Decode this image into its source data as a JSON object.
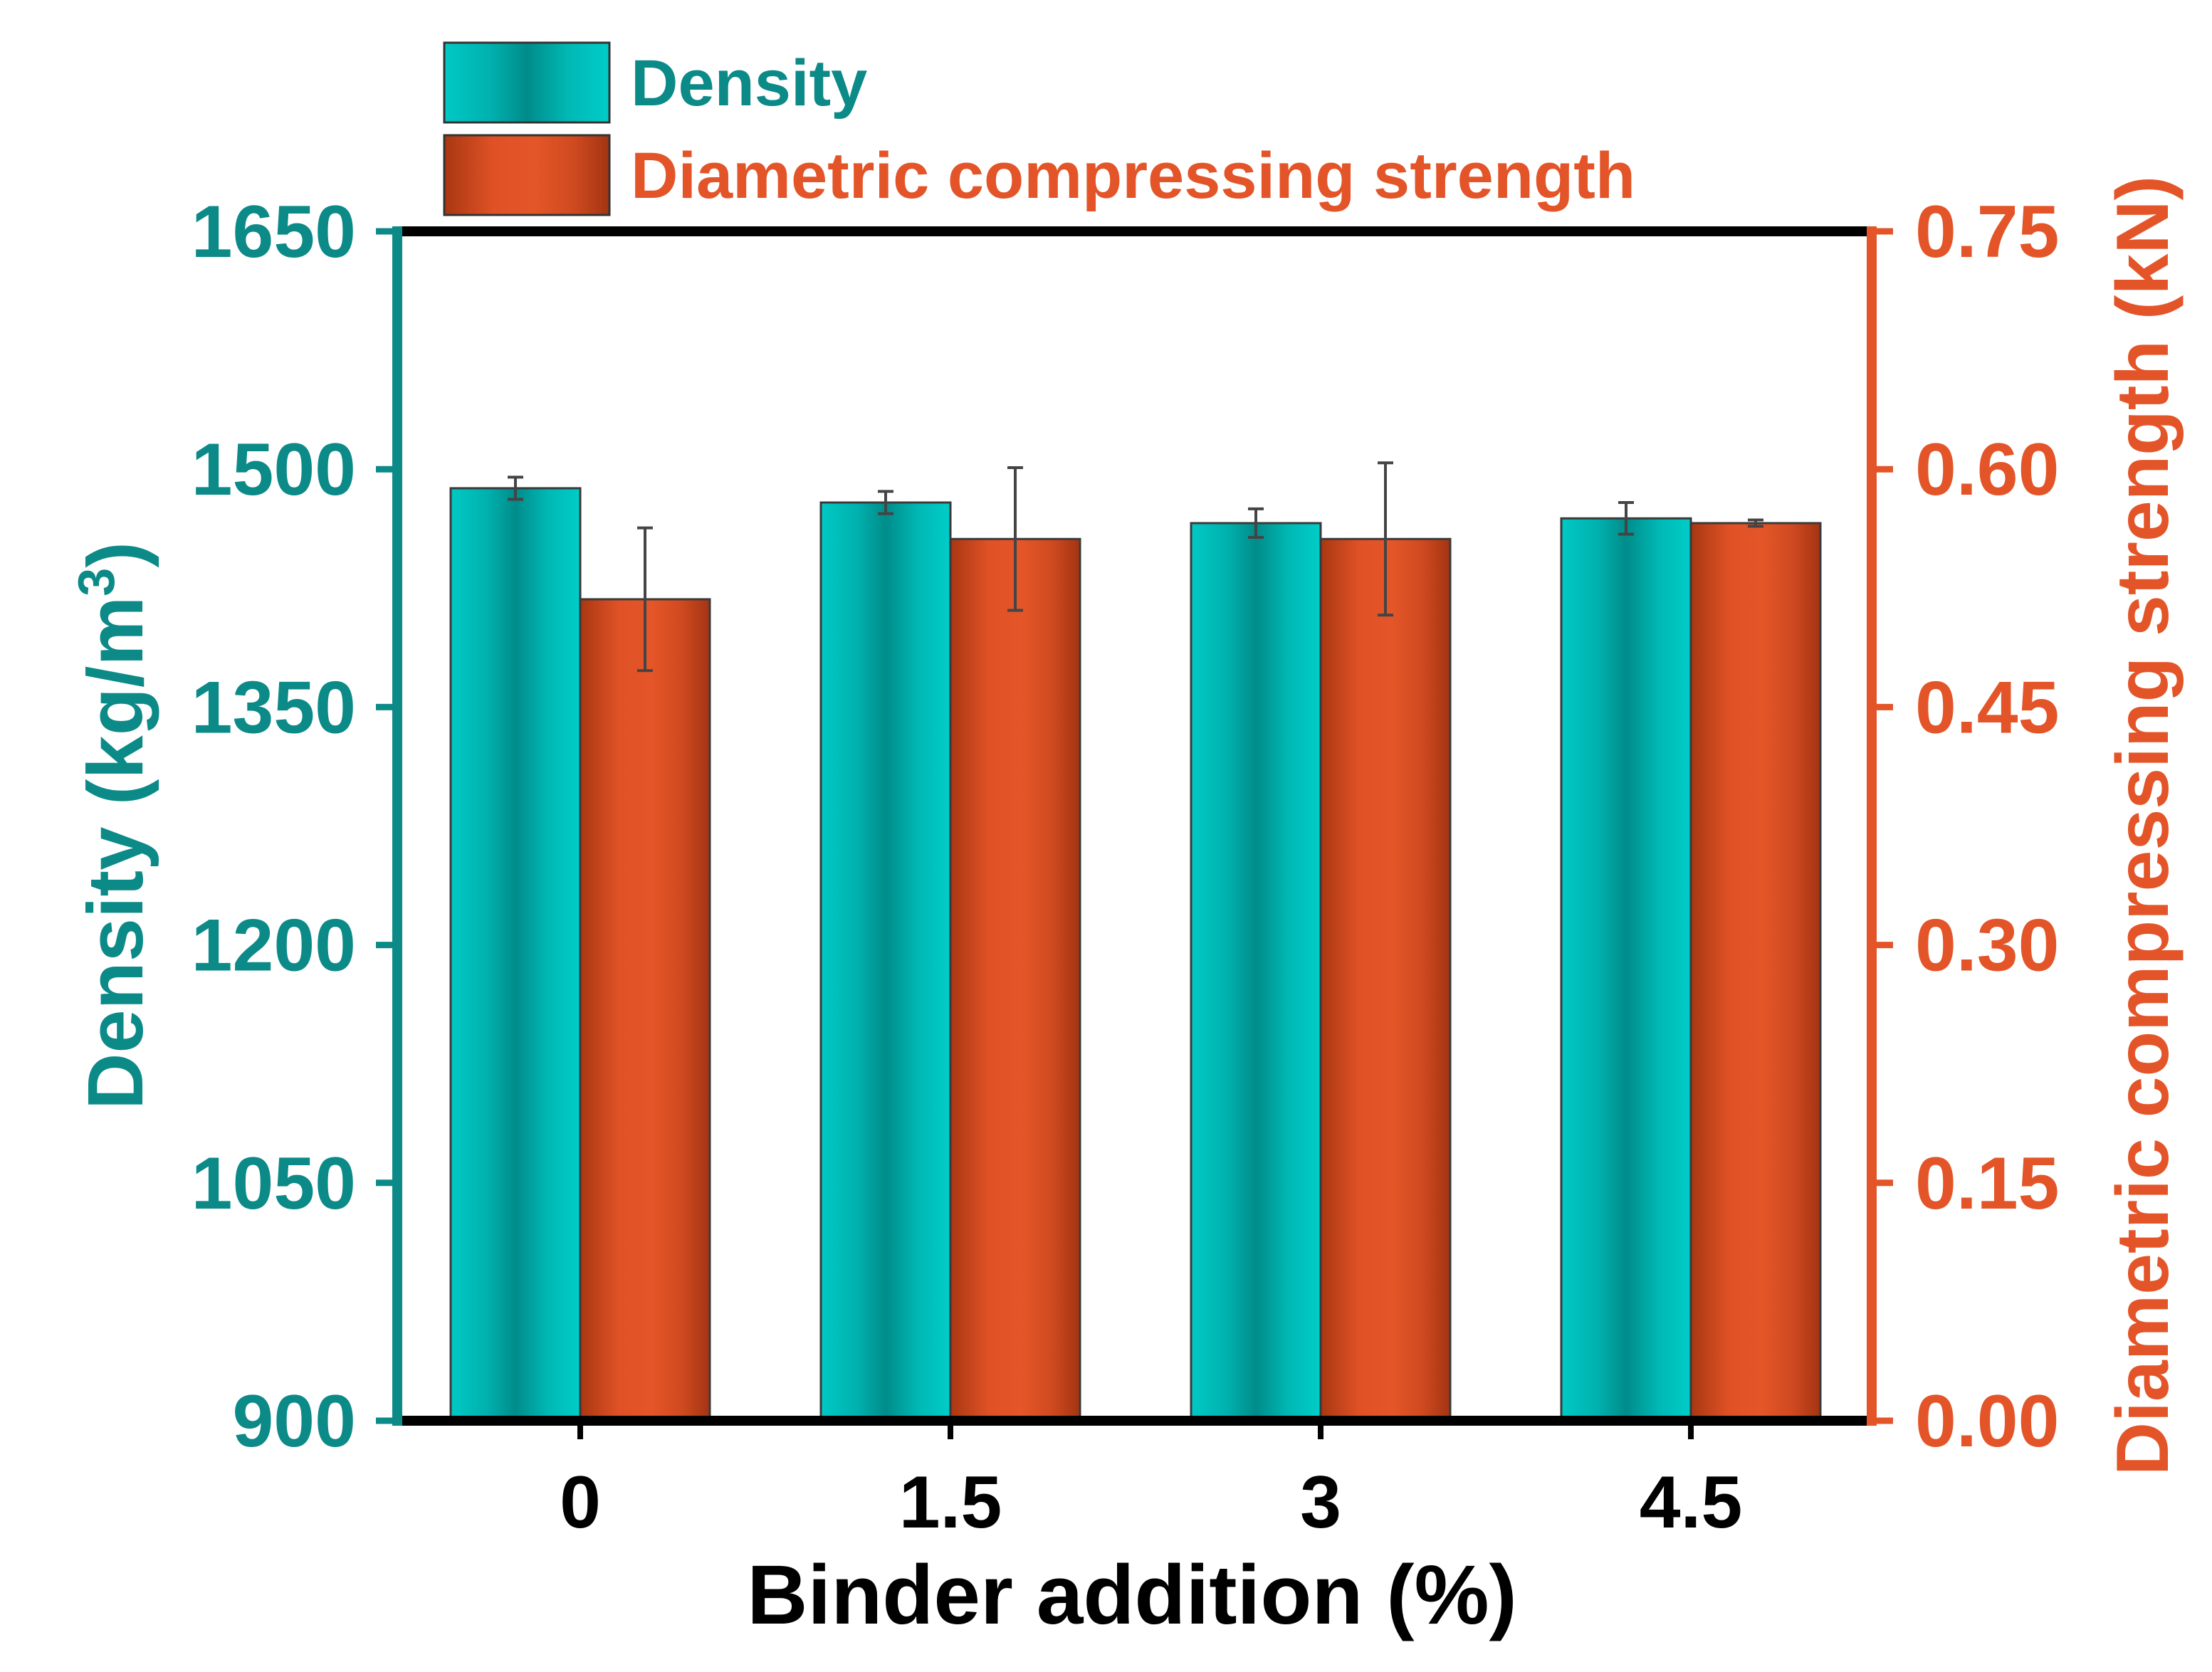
{
  "chart_data": {
    "type": "bar",
    "xlabel": "Binder addition (%)",
    "categories": [
      "0",
      "1.5",
      "3",
      "4.5"
    ],
    "series": [
      {
        "name": "Density",
        "axis": "left",
        "color": "#00c8c4",
        "values": [
          1488,
          1479,
          1466,
          1469
        ],
        "errors": [
          7,
          7,
          9,
          10
        ]
      },
      {
        "name": "Diametric compressing strength",
        "axis": "right",
        "color": "#e35528",
        "values": [
          0.518,
          0.556,
          0.556,
          0.566
        ],
        "errors": [
          0.045,
          0.045,
          0.048,
          0.002
        ]
      }
    ],
    "left_axis": {
      "label_main": "Density (kg/m",
      "label_sup": "3",
      "label_end": ")",
      "ylim": [
        900,
        1650
      ],
      "ticks": [
        "900",
        "1050",
        "1200",
        "1350",
        "1500",
        "1650"
      ],
      "color": "#0b8a88"
    },
    "right_axis": {
      "label": "Diametric compressing strength (kN)",
      "ylim": [
        0,
        0.75
      ],
      "ticks": [
        "0.00",
        "0.15",
        "0.30",
        "0.45",
        "0.60",
        "0.75"
      ],
      "color": "#e35528"
    },
    "legend": {
      "position": "top-left",
      "entries": [
        "Density",
        "Diametric compressing strength"
      ]
    }
  }
}
